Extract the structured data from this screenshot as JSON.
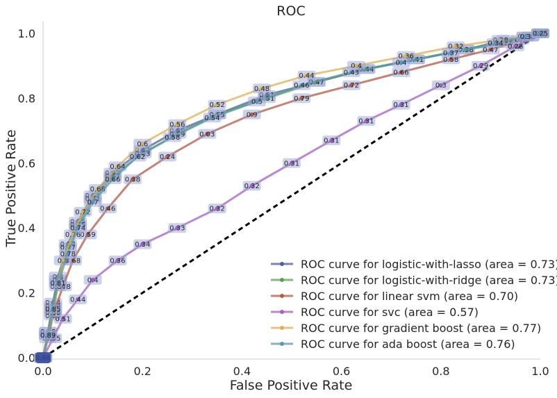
{
  "chart_data": {
    "type": "line",
    "title": "ROC",
    "xlabel": "False Positive Rate",
    "ylabel": "True Positive Rate",
    "xlim": [
      0.0,
      1.0
    ],
    "ylim": [
      0.0,
      1.0
    ],
    "xticks": [
      "0.0",
      "0.2",
      "0.4",
      "0.6",
      "0.8",
      "1.0"
    ],
    "yticks": [
      "0.0",
      "0.2",
      "0.4",
      "0.6",
      "0.8",
      "1.0"
    ],
    "grid": false,
    "legend_position": "lower-right",
    "diagonal": {
      "x": [
        0,
        1
      ],
      "y": [
        0,
        1
      ],
      "style": "dashed",
      "color": "#000000"
    },
    "series": [
      {
        "name": "ROC curve for logistic-with-lasso (area = 0.73)",
        "color": "#4c5f9a",
        "x": [
          0.0,
          0.01,
          0.02,
          0.03,
          0.05,
          0.07,
          0.1,
          0.14,
          0.2,
          0.27,
          0.35,
          0.45,
          0.55,
          0.65,
          0.75,
          0.85,
          0.93,
          0.98,
          1.0
        ],
        "y": [
          0.0,
          0.08,
          0.17,
          0.25,
          0.35,
          0.42,
          0.5,
          0.57,
          0.64,
          0.7,
          0.75,
          0.81,
          0.85,
          0.89,
          0.92,
          0.95,
          0.98,
          0.99,
          1.0
        ],
        "thresholds": [
          "0.96",
          "0.88",
          "0.84",
          "0.8",
          "0.77",
          "0.75",
          "0.71",
          "0.67",
          "0.63",
          "0.59",
          "0.55",
          "0.51",
          "0.47",
          "0.44",
          "0.41",
          "0.38",
          "0.35",
          "0.3",
          "0.24"
        ]
      },
      {
        "name": "ROC curve for logistic-with-ridge (area = 0.73)",
        "color": "#59a14f",
        "x": [
          0.0,
          0.01,
          0.02,
          0.03,
          0.05,
          0.07,
          0.1,
          0.14,
          0.2,
          0.27,
          0.35,
          0.45,
          0.55,
          0.65,
          0.75,
          0.85,
          0.93,
          0.98,
          1.0
        ],
        "y": [
          0.0,
          0.08,
          0.16,
          0.24,
          0.34,
          0.41,
          0.49,
          0.56,
          0.63,
          0.69,
          0.75,
          0.8,
          0.85,
          0.89,
          0.92,
          0.95,
          0.97,
          0.99,
          1.0
        ],
        "thresholds": [
          "0.96",
          "0.88",
          "0.84",
          "0.8",
          "0.77",
          "0.75",
          "0.71",
          "0.67",
          "0.63",
          "0.59",
          "0.55",
          "0.51",
          "0.47",
          "0.44",
          "0.41",
          "0.38",
          "0.35",
          "0.3",
          "0.24"
        ]
      },
      {
        "name": "ROC curve for linear svm (area = 0.70)",
        "color": "#b05a4a",
        "x": [
          0.0,
          0.01,
          0.02,
          0.04,
          0.06,
          0.09,
          0.13,
          0.18,
          0.25,
          0.33,
          0.42,
          0.52,
          0.62,
          0.72,
          0.82,
          0.9,
          0.96,
          1.0
        ],
        "y": [
          0.0,
          0.06,
          0.13,
          0.22,
          0.3,
          0.38,
          0.46,
          0.55,
          0.62,
          0.69,
          0.75,
          0.8,
          0.84,
          0.88,
          0.92,
          0.95,
          0.98,
          1.0
        ],
        "thresholds": [
          "0.95",
          "0.9",
          "0.85",
          "0.78",
          "0.68",
          "0.59",
          "0.46",
          "0.38",
          "0.24",
          "0.03",
          "0.9",
          "0.79",
          "0.72",
          "0.66",
          "0.58",
          "0.47",
          "0.3",
          "0.1"
        ]
      },
      {
        "name": "ROC curve for svc (area = 0.57)",
        "color": "#a45fc0",
        "x": [
          0.0,
          0.02,
          0.04,
          0.07,
          0.1,
          0.15,
          0.2,
          0.27,
          0.35,
          0.42,
          0.5,
          0.58,
          0.65,
          0.72,
          0.8,
          0.88,
          0.95,
          1.0
        ],
        "y": [
          0.0,
          0.06,
          0.12,
          0.18,
          0.24,
          0.3,
          0.35,
          0.4,
          0.46,
          0.53,
          0.6,
          0.67,
          0.73,
          0.78,
          0.84,
          0.9,
          0.96,
          1.0
        ],
        "thresholds": [
          "0.6",
          "0.55",
          "0.51",
          "0.44",
          "0.4",
          "0.36",
          "0.34",
          "0.33",
          "0.32",
          "0.32",
          "0.31",
          "0.31",
          "0.31",
          "0.31",
          "0.3",
          "0.29",
          "0.28",
          "0.25"
        ]
      },
      {
        "name": "ROC curve for gradient boost (area = 0.77)",
        "color": "#d9b35a",
        "x": [
          0.0,
          0.01,
          0.02,
          0.03,
          0.04,
          0.06,
          0.08,
          0.11,
          0.15,
          0.2,
          0.27,
          0.35,
          0.44,
          0.53,
          0.63,
          0.73,
          0.83,
          0.92,
          0.97,
          1.0
        ],
        "y": [
          0.0,
          0.07,
          0.14,
          0.22,
          0.3,
          0.38,
          0.45,
          0.52,
          0.59,
          0.66,
          0.72,
          0.78,
          0.83,
          0.87,
          0.9,
          0.93,
          0.96,
          0.98,
          0.99,
          1.0
        ],
        "thresholds": [
          "0.97",
          "0.93",
          "0.88",
          "0.84",
          "0.8",
          "0.76",
          "0.72",
          "0.68",
          "0.64",
          "0.6",
          "0.56",
          "0.52",
          "0.48",
          "0.44",
          "0.4",
          "0.36",
          "0.32",
          "0.28",
          "0.24",
          "0.2"
        ]
      },
      {
        "name": "ROC curve for ada boost (area = 0.76)",
        "color": "#5b97b2",
        "x": [
          0.0,
          0.01,
          0.02,
          0.03,
          0.05,
          0.07,
          0.1,
          0.14,
          0.19,
          0.26,
          0.34,
          0.43,
          0.52,
          0.62,
          0.72,
          0.82,
          0.91,
          0.97,
          1.0
        ],
        "y": [
          0.0,
          0.07,
          0.15,
          0.23,
          0.32,
          0.4,
          0.48,
          0.55,
          0.62,
          0.68,
          0.74,
          0.79,
          0.84,
          0.88,
          0.91,
          0.94,
          0.97,
          0.99,
          1.0
        ],
        "thresholds": [
          "0.96",
          "0.89",
          "0.85",
          "0.81",
          "0.78",
          "0.74",
          "0.7",
          "0.66",
          "0.62",
          "0.58",
          "0.54",
          "0.5",
          "0.46",
          "0.43",
          "0.4",
          "0.37",
          "0.34",
          "0.3",
          "0.25"
        ]
      }
    ]
  }
}
